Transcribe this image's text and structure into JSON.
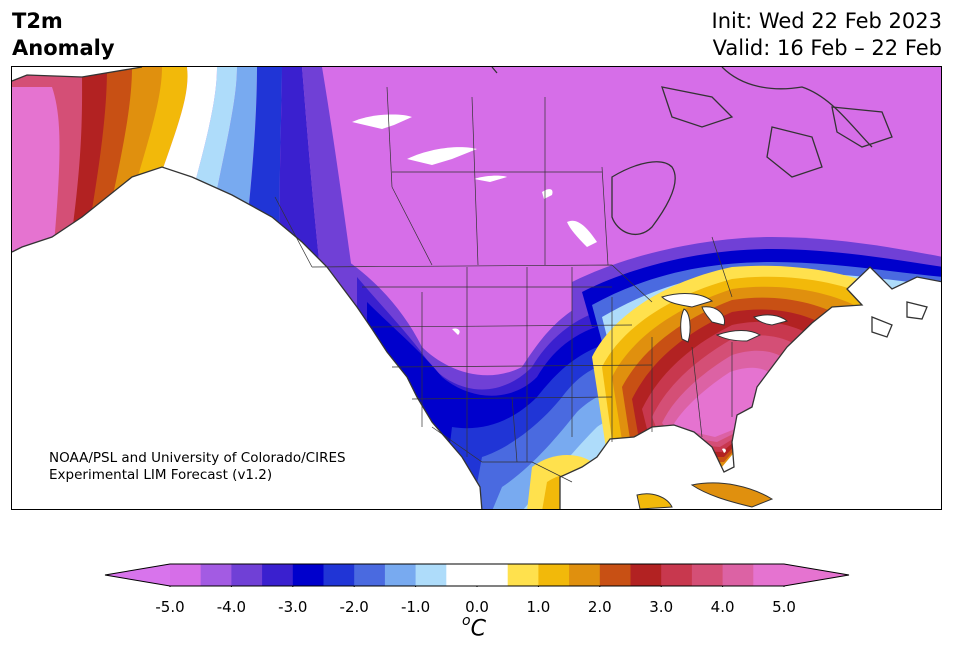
{
  "header": {
    "title_line1": "T2m",
    "title_line2": "Anomaly",
    "init_label": "Init: Wed 22 Feb 2023",
    "valid_label": "Valid: 16 Feb – 22 Feb"
  },
  "credit": {
    "line1": "NOAA/PSL and University of Colorado/CIRES",
    "line2": "Experimental LIM Forecast (v1.2)"
  },
  "colorbar": {
    "unit_symbol": "o",
    "unit_letter": "C",
    "extend": "both",
    "ticks": [
      "-5.0",
      "-4.0",
      "-3.0",
      "-2.0",
      "-1.0",
      "0.0",
      "1.0",
      "2.0",
      "3.0",
      "4.0",
      "5.0"
    ],
    "tick_values": [
      -5,
      -4,
      -3,
      -2,
      -1,
      0,
      1,
      2,
      3,
      4,
      5
    ],
    "range": [
      -5,
      5
    ],
    "levels": [
      -5.0,
      -4.5,
      -4.0,
      -3.5,
      -3.0,
      -2.5,
      -2.0,
      -1.5,
      -1.0,
      -0.5,
      0.5,
      1.0,
      1.5,
      2.0,
      2.5,
      3.0,
      3.5,
      4.0,
      4.5,
      5.0
    ],
    "colors": [
      "#d66ee8",
      "#a35be3",
      "#7040d6",
      "#3a20cf",
      "#0000cc",
      "#2035d6",
      "#4a6ae0",
      "#78aaf0",
      "#aedcfa",
      "#ffffff",
      "#ffe14d",
      "#f2b90a",
      "#e0900e",
      "#c85014",
      "#b22222",
      "#c8384e",
      "#d44f76",
      "#dc62a4",
      "#e573d0"
    ],
    "under_color": "#d874ec",
    "over_color": "#e573d0"
  }
}
